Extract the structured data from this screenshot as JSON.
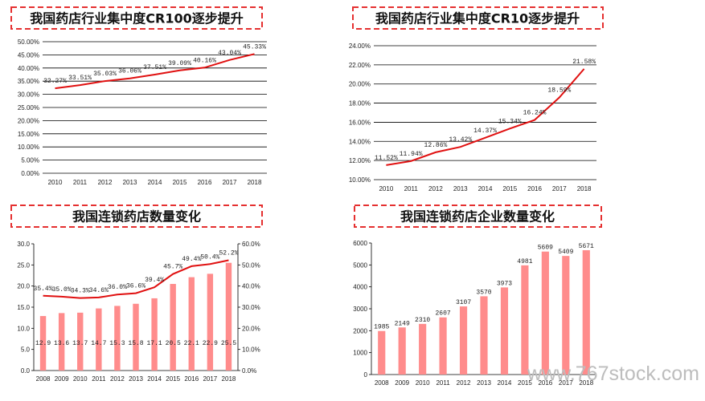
{
  "watermark": "www.767stock.com",
  "colors": {
    "line": "#e01010",
    "bar": "#ff8c8c",
    "title_border": "#e53030",
    "grid": "#000000"
  },
  "chart_data": [
    {
      "type": "line",
      "title": "我国药店行业集中度CR100逐步提升",
      "categories": [
        "2010",
        "2011",
        "2012",
        "2013",
        "2014",
        "2015",
        "2016",
        "2017",
        "2018"
      ],
      "series": [
        {
          "values": [
            32.27,
            33.51,
            35.03,
            36.06,
            37.51,
            39.09,
            40.16,
            43.04,
            45.33
          ],
          "labels": [
            "32.27%",
            "33.51%",
            "35.03%",
            "36.06%",
            "37.51%",
            "39.09%",
            "40.16%",
            "43.04%",
            "45.33%"
          ]
        }
      ],
      "ylim": [
        0,
        50
      ],
      "ystep": 5,
      "yticks": [
        "0.00%",
        "5.00%",
        "10.00%",
        "15.00%",
        "20.00%",
        "25.00%",
        "30.00%",
        "35.00%",
        "40.00%",
        "45.00%",
        "50.00%"
      ],
      "grid": true
    },
    {
      "type": "line",
      "title": "我国药店行业集中度CR10逐步提升",
      "categories": [
        "2010",
        "2011",
        "2012",
        "2013",
        "2014",
        "2015",
        "2016",
        "2017",
        "2018"
      ],
      "series": [
        {
          "values": [
            11.52,
            11.94,
            12.86,
            13.42,
            14.37,
            15.34,
            16.24,
            18.59,
            21.58
          ],
          "labels": [
            "11.52%",
            "11.94%",
            "12.86%",
            "13.42%",
            "14.37%",
            "15.34%",
            "16.24%",
            "18.59%",
            "21.58%"
          ]
        }
      ],
      "ylim": [
        10,
        24
      ],
      "ystep": 2,
      "yticks": [
        "10.00%",
        "12.00%",
        "14.00%",
        "16.00%",
        "18.00%",
        "20.00%",
        "22.00%",
        "24.00%"
      ],
      "grid": true
    },
    {
      "type": "bar+line",
      "title": "我国连锁药店数量变化",
      "categories": [
        "2008",
        "2009",
        "2010",
        "2011",
        "2012",
        "2013",
        "2014",
        "2015",
        "2016",
        "2017",
        "2018"
      ],
      "bar_series": {
        "values": [
          12.9,
          13.6,
          13.7,
          14.7,
          15.3,
          15.8,
          17.1,
          20.5,
          22.1,
          22.9,
          25.5
        ],
        "labels": [
          "12.9",
          "13.6",
          "13.7",
          "14.7",
          "15.3",
          "15.8",
          "17.1",
          "20.5",
          "22.1",
          "22.9",
          "25.5"
        ]
      },
      "line_series": {
        "values": [
          35.4,
          35.0,
          34.3,
          34.6,
          36.0,
          36.6,
          39.4,
          45.7,
          49.4,
          50.4,
          52.2
        ],
        "labels": [
          "35.4%",
          "35.0%",
          "34.3%",
          "34.6%",
          "36.0%",
          "36.6%",
          "39.4%",
          "45.7%",
          "49.4%",
          "50.4%",
          "52.2%"
        ]
      },
      "ylim_left": [
        0,
        30
      ],
      "ystep_left": 5,
      "yticks_left": [
        "0.0",
        "5.0",
        "10.0",
        "15.0",
        "20.0",
        "25.0",
        "30.0"
      ],
      "ylim_right": [
        0,
        60
      ],
      "ystep_right": 10,
      "yticks_right": [
        "0.0%",
        "10.0%",
        "20.0%",
        "30.0%",
        "40.0%",
        "50.0%",
        "60.0%"
      ],
      "grid": false
    },
    {
      "type": "bar",
      "title": "我国连锁药店企业数量变化",
      "categories": [
        "2008",
        "2009",
        "2010",
        "2011",
        "2012",
        "2013",
        "2014",
        "2015",
        "2016",
        "2017",
        "2018"
      ],
      "series": [
        {
          "values": [
            1985,
            2149,
            2310,
            2607,
            3107,
            3570,
            3973,
            4981,
            5609,
            5409,
            5671
          ],
          "labels": [
            "1985",
            "2149",
            "2310",
            "2607",
            "3107",
            "3570",
            "3973",
            "4981",
            "5609",
            "5409",
            "5671"
          ]
        }
      ],
      "ylim": [
        0,
        6000
      ],
      "ystep": 1000,
      "yticks": [
        "0",
        "1000",
        "2000",
        "3000",
        "4000",
        "5000",
        "6000"
      ],
      "grid": false
    }
  ]
}
